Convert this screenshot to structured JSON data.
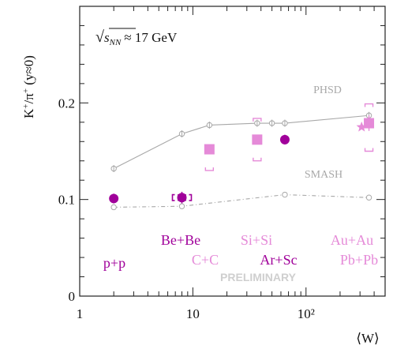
{
  "chart_data": {
    "type": "scatter",
    "annotation": "≈ 17 GeV",
    "energy_label": {
      "base": "s",
      "sub": "NN"
    },
    "ylabel": {
      "main": "K",
      "sup1": "+",
      "mid": "/π",
      "sup2": "+",
      "tail": " (y≈0)"
    },
    "xlabel": "⟨W⟩",
    "xscale": "log",
    "xlim": [
      1,
      500
    ],
    "ylim": [
      0,
      0.3
    ],
    "x_ticks": [
      1,
      10,
      100
    ],
    "x_tick_labels": [
      "1",
      "10",
      "10²"
    ],
    "y_ticks": [
      0,
      0.1,
      0.2
    ],
    "y_tick_labels": [
      "0",
      "0.1",
      "0.2"
    ],
    "watermark": "PRELIMINARY",
    "colors": {
      "magenta": "#a0009a",
      "pink": "#e58ad8",
      "model": "#a8a8a8",
      "axis": "#222222"
    },
    "series": [
      {
        "name": "p+p",
        "marker": "circle",
        "color": "#a0009a",
        "points": [
          {
            "x": 2.0,
            "y": 0.101,
            "err": 0.005
          }
        ]
      },
      {
        "name": "Be+Be",
        "marker": "circle",
        "color": "#a0009a",
        "points": [
          {
            "x": 8.0,
            "y": 0.102,
            "err": 0.006,
            "sys": 0.003
          }
        ]
      },
      {
        "name": "C+C",
        "marker": "square",
        "color": "#e58ad8",
        "points": [
          {
            "x": 14.0,
            "y": 0.152,
            "err": 0.005,
            "sys_low": 0.13
          }
        ]
      },
      {
        "name": "Si+Si",
        "marker": "square",
        "color": "#e58ad8",
        "points": [
          {
            "x": 37.0,
            "y": 0.162,
            "err": 0.004,
            "sys_low": 0.14,
            "sys_high": 0.184
          }
        ]
      },
      {
        "name": "Ar+Sc",
        "marker": "circle",
        "color": "#a0009a",
        "points": [
          {
            "x": 65.0,
            "y": 0.162,
            "err": 0.005
          }
        ]
      },
      {
        "name": "Pb+Pb",
        "marker": "square",
        "color": "#e58ad8",
        "points": [
          {
            "x": 360.0,
            "y": 0.179,
            "err": 0.008,
            "sys_low": 0.15,
            "sys_high": 0.199
          }
        ]
      },
      {
        "name": "Au+Au",
        "marker": "star",
        "color": "#e58ad8",
        "points": [
          {
            "x": 310.0,
            "y": 0.175
          }
        ]
      }
    ],
    "models": [
      {
        "name": "PHSD",
        "style": "solid",
        "x": [
          2,
          8,
          14,
          37,
          50,
          65,
          360
        ],
        "y": [
          0.132,
          0.168,
          0.177,
          0.179,
          0.179,
          0.179,
          0.187
        ]
      },
      {
        "name": "SMASH",
        "style": "dashdot",
        "x": [
          2,
          8,
          65,
          360
        ],
        "y": [
          0.092,
          0.093,
          0.105,
          0.102
        ]
      }
    ],
    "legend": [
      {
        "label": "p+p",
        "color": "#a0009a",
        "row": 3,
        "col": 1
      },
      {
        "label": "Be+Be",
        "color": "#a0009a",
        "row": 1,
        "col": 2
      },
      {
        "label": "C+C",
        "color": "#e58ad8",
        "row": 2,
        "col": 2
      },
      {
        "label": "Si+Si",
        "color": "#e58ad8",
        "row": 1,
        "col": 3
      },
      {
        "label": "Ar+Sc",
        "color": "#a0009a",
        "row": 2,
        "col": 3
      },
      {
        "label": "Au+Au",
        "color": "#e58ad8",
        "row": 1,
        "col": 4
      },
      {
        "label": "Pb+Pb",
        "color": "#e58ad8",
        "row": 2,
        "col": 4
      }
    ]
  }
}
